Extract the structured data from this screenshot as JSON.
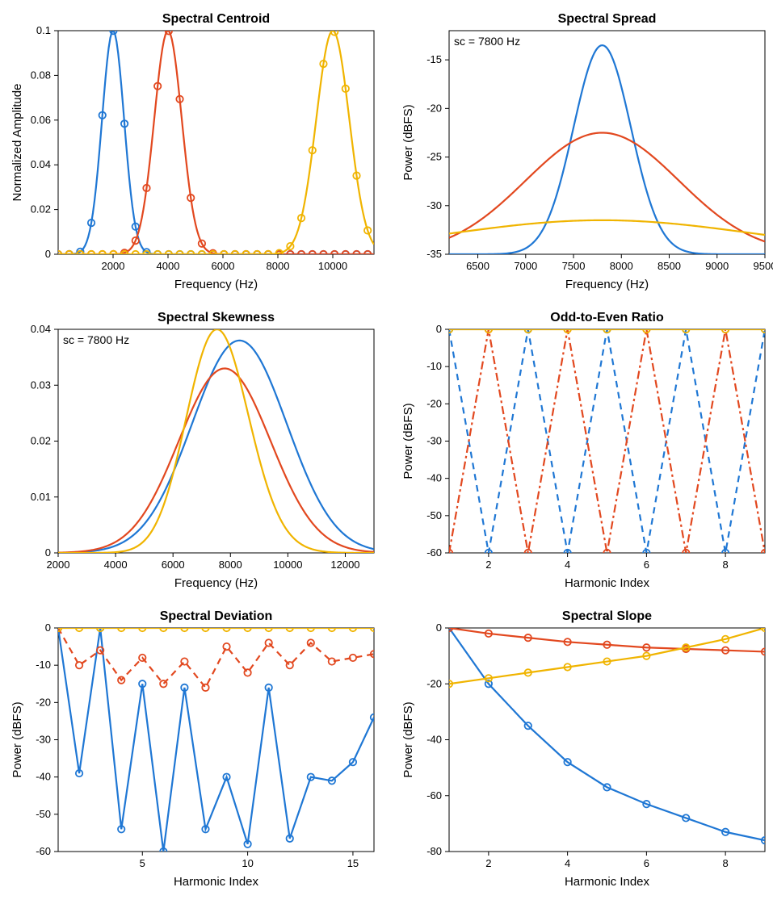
{
  "colors": {
    "blue": "#1f77d4",
    "orange": "#e2481f",
    "yellow": "#f0b400",
    "axis": "#000000",
    "bg": "#ffffff"
  },
  "font": {
    "title_size": 16,
    "label_size": 15,
    "tick_size": 13,
    "annotation_size": 14,
    "family": "Arial"
  },
  "panels": [
    {
      "id": "centroid",
      "title": "Spectral Centroid",
      "xlabel": "Frequency (Hz)",
      "ylabel": "Normalized Amplitude",
      "xlim": [
        0,
        11500
      ],
      "ylim": [
        0,
        0.1
      ],
      "xticks": [
        2000,
        4000,
        6000,
        8000,
        10000
      ],
      "yticks": [
        0,
        0.02,
        0.04,
        0.06,
        0.08,
        0.1
      ],
      "series": [
        {
          "color": "blue",
          "marker": "o",
          "style": "solid",
          "type": "gauss",
          "mu": 2000,
          "sigma": 400,
          "amp": 0.1
        },
        {
          "color": "orange",
          "marker": "o",
          "style": "solid",
          "type": "gauss",
          "mu": 4000,
          "sigma": 500,
          "amp": 0.1
        },
        {
          "color": "yellow",
          "marker": "o",
          "style": "solid",
          "type": "gauss",
          "mu": 10000,
          "sigma": 600,
          "amp": 0.1
        }
      ]
    },
    {
      "id": "spread",
      "title": "Spectral Spread",
      "xlabel": "Frequency (Hz)",
      "ylabel": "Power (dBFS)",
      "annotation": "sc = 7800 Hz",
      "xlim": [
        6200,
        9500
      ],
      "ylim": [
        -35,
        -12
      ],
      "xticks": [
        6500,
        7000,
        7500,
        8000,
        8500,
        9000,
        9500
      ],
      "yticks": [
        -35,
        -30,
        -25,
        -20,
        -15
      ],
      "series": [
        {
          "color": "blue",
          "style": "solid",
          "type": "gauss_db",
          "mu": 7800,
          "sigma": 300,
          "peak": -13.5,
          "floor": -35
        },
        {
          "color": "orange",
          "style": "solid",
          "type": "gauss_db",
          "mu": 7800,
          "sigma": 800,
          "peak": -22.5,
          "floor": -35
        },
        {
          "color": "yellow",
          "style": "solid",
          "type": "gauss_db",
          "mu": 7800,
          "sigma": 1600,
          "peak": -31.5,
          "floor": -35
        }
      ]
    },
    {
      "id": "skewness",
      "title": "Spectral Skewness",
      "xlabel": "Frequency (Hz)",
      "ylabel": "",
      "annotation": "sc = 7800 Hz",
      "xlim": [
        2000,
        13000
      ],
      "ylim": [
        0,
        0.04
      ],
      "xticks": [
        2000,
        4000,
        6000,
        8000,
        10000,
        12000
      ],
      "yticks": [
        0,
        0.01,
        0.02,
        0.03,
        0.04
      ],
      "series": [
        {
          "color": "blue",
          "style": "solid",
          "type": "skew",
          "mu": 8700,
          "sigma": 1700,
          "skew": -0.3,
          "amp": 0.038
        },
        {
          "color": "orange",
          "style": "solid",
          "type": "skew",
          "mu": 7800,
          "sigma": 1600,
          "skew": 0.0,
          "amp": 0.033
        },
        {
          "color": "yellow",
          "style": "solid",
          "type": "skew",
          "mu": 6900,
          "sigma": 1300,
          "skew": 0.9,
          "amp": 0.04
        }
      ]
    },
    {
      "id": "odd_even",
      "title": "Odd-to-Even Ratio",
      "xlabel": "Harmonic Index",
      "ylabel": "Power (dBFS)",
      "xlim": [
        1,
        9
      ],
      "ylim": [
        -60,
        0
      ],
      "xticks": [
        2,
        4,
        6,
        8
      ],
      "yticks": [
        -60,
        -50,
        -40,
        -30,
        -20,
        -10,
        0
      ],
      "series": [
        {
          "color": "blue",
          "marker": "o",
          "style": "dashed",
          "type": "points",
          "x": [
            1,
            2,
            3,
            4,
            5,
            6,
            7,
            8,
            9
          ],
          "y": [
            0,
            -60,
            0,
            -60,
            0,
            -60,
            0,
            -60,
            0
          ]
        },
        {
          "color": "orange",
          "marker": "o",
          "style": "dashdot",
          "type": "points",
          "x": [
            1,
            2,
            3,
            4,
            5,
            6,
            7,
            8,
            9
          ],
          "y": [
            -60,
            0,
            -60,
            0,
            -60,
            0,
            -60,
            0,
            -60
          ]
        },
        {
          "color": "yellow",
          "marker": "o",
          "style": "solid",
          "type": "points",
          "x": [
            1,
            2,
            3,
            4,
            5,
            6,
            7,
            8,
            9
          ],
          "y": [
            0,
            0,
            0,
            0,
            0,
            0,
            0,
            0,
            0
          ]
        }
      ]
    },
    {
      "id": "deviation",
      "title": "Spectral Deviation",
      "xlabel": "Harmonic Index",
      "ylabel": "Power (dBFS)",
      "xlim": [
        1,
        16
      ],
      "ylim": [
        -60,
        0
      ],
      "xticks": [
        5,
        10,
        15
      ],
      "yticks": [
        -60,
        -50,
        -40,
        -30,
        -20,
        -10,
        0
      ],
      "series": [
        {
          "color": "blue",
          "marker": "o",
          "style": "solid",
          "type": "points",
          "x": [
            1,
            2,
            3,
            4,
            5,
            6,
            7,
            8,
            9,
            10,
            11,
            12,
            13,
            14,
            15,
            16
          ],
          "y": [
            0,
            -39,
            0,
            -54,
            -15,
            -60,
            -16,
            -54,
            -40,
            -58,
            -16,
            -56.5,
            -40,
            -41,
            -36,
            -24
          ]
        },
        {
          "color": "orange",
          "marker": "o",
          "style": "dashed",
          "type": "points",
          "x": [
            1,
            2,
            3,
            4,
            5,
            6,
            7,
            8,
            9,
            10,
            11,
            12,
            13,
            14,
            15,
            16
          ],
          "y": [
            0,
            -10,
            -6,
            -14,
            -8,
            -15,
            -9,
            -16,
            -5,
            -12,
            -4,
            -10,
            -4,
            -9,
            -8,
            -7
          ]
        },
        {
          "color": "yellow",
          "marker": "o",
          "style": "solid",
          "type": "points",
          "x": [
            1,
            2,
            3,
            4,
            5,
            6,
            7,
            8,
            9,
            10,
            11,
            12,
            13,
            14,
            15,
            16
          ],
          "y": [
            0,
            0,
            0,
            0,
            0,
            0,
            0,
            0,
            0,
            0,
            0,
            0,
            0,
            0,
            0,
            0
          ]
        }
      ]
    },
    {
      "id": "slope",
      "title": "Spectral Slope",
      "xlabel": "Harmonic Index",
      "ylabel": "Power (dBFS)",
      "xlim": [
        1,
        9
      ],
      "ylim": [
        -80,
        0
      ],
      "xticks": [
        2,
        4,
        6,
        8
      ],
      "yticks": [
        -80,
        -60,
        -40,
        -20,
        0
      ],
      "series": [
        {
          "color": "blue",
          "marker": "o",
          "style": "solid",
          "type": "points",
          "x": [
            1,
            2,
            3,
            4,
            5,
            6,
            7,
            8,
            9
          ],
          "y": [
            0,
            -20,
            -35,
            -48,
            -57,
            -63,
            -68,
            -73,
            -76
          ]
        },
        {
          "color": "orange",
          "marker": "o",
          "style": "solid",
          "type": "points",
          "x": [
            1,
            2,
            3,
            4,
            5,
            6,
            7,
            8,
            9
          ],
          "y": [
            0,
            -2,
            -3.5,
            -5,
            -6,
            -7,
            -7.5,
            -8,
            -8.5
          ]
        },
        {
          "color": "yellow",
          "marker": "o",
          "style": "solid",
          "type": "points",
          "x": [
            1,
            2,
            3,
            4,
            5,
            6,
            7,
            8,
            9
          ],
          "y": [
            -20,
            -18,
            -16,
            -14,
            -12,
            -10,
            -7,
            -4,
            0
          ]
        }
      ]
    }
  ]
}
